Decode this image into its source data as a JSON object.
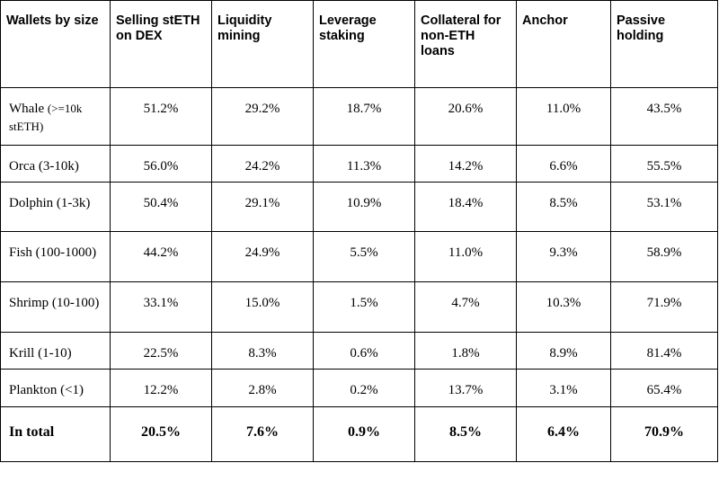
{
  "table": {
    "headers": [
      "Wallets by size",
      "Selling stETH on DEX",
      "Liquidity mining",
      "Leverage staking",
      "Collateral for non-ETH loans",
      "Anchor",
      "Passive holding"
    ],
    "rows": [
      {
        "label_main": "Whale ",
        "label_small": "(>=10k stETH)",
        "values": [
          "51.2%",
          "29.2%",
          "18.7%",
          "20.6%",
          "11.0%",
          "43.5%"
        ]
      },
      {
        "label_main": "Orca (3-10k)",
        "label_small": "",
        "values": [
          "56.0%",
          "24.2%",
          "11.3%",
          "14.2%",
          "6.6%",
          "55.5%"
        ]
      },
      {
        "label_main": "Dolphin (1-3k)",
        "label_small": "",
        "values": [
          "50.4%",
          "29.1%",
          "10.9%",
          "18.4%",
          "8.5%",
          "53.1%"
        ]
      },
      {
        "label_main": "Fish (100-1000)",
        "label_small": "",
        "values": [
          "44.2%",
          "24.9%",
          "5.5%",
          "11.0%",
          "9.3%",
          "58.9%"
        ]
      },
      {
        "label_main": "Shrimp (10-100)",
        "label_small": "",
        "values": [
          "33.1%",
          "15.0%",
          "1.5%",
          "4.7%",
          "10.3%",
          "71.9%"
        ]
      },
      {
        "label_main": "Krill  (1-10)",
        "label_small": "",
        "values": [
          "22.5%",
          "8.3%",
          "0.6%",
          "1.8%",
          "8.9%",
          "81.4%"
        ]
      },
      {
        "label_main": "Plankton (<1)",
        "label_small": "",
        "values": [
          "12.2%",
          "2.8%",
          "0.2%",
          "13.7%",
          "3.1%",
          "65.4%"
        ]
      }
    ],
    "total": {
      "label": "In total",
      "values": [
        "20.5%",
        "7.6%",
        "0.9%",
        "8.5%",
        "6.4%",
        "70.9%"
      ]
    }
  }
}
